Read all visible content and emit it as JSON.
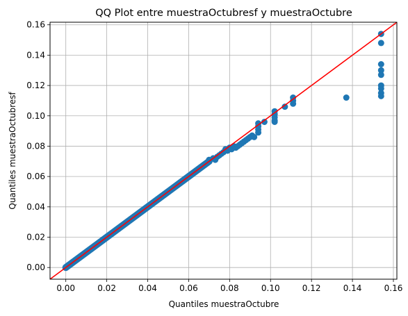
{
  "chart_data": {
    "type": "scatter",
    "title": "QQ Plot entre muestraOctubresf y muestraOctubre",
    "xlabel": "Quantiles muestraOctubre",
    "ylabel": "Quantiles muestraOctubresf",
    "xlim": [
      -0.0077,
      0.1617
    ],
    "ylim": [
      -0.0077,
      0.1617
    ],
    "xticks": [
      0.0,
      0.02,
      0.04,
      0.06,
      0.08,
      0.1,
      0.12,
      0.14,
      0.16
    ],
    "yticks": [
      0.0,
      0.02,
      0.04,
      0.06,
      0.08,
      0.1,
      0.12,
      0.14,
      0.16
    ],
    "xtick_labels": [
      "0.00",
      "0.02",
      "0.04",
      "0.06",
      "0.08",
      "0.10",
      "0.12",
      "0.14",
      "0.16"
    ],
    "ytick_labels": [
      "0.00",
      "0.02",
      "0.04",
      "0.06",
      "0.08",
      "0.10",
      "0.12",
      "0.14",
      "0.16"
    ],
    "grid": true,
    "points_color": "#1f77b4",
    "reference_line": {
      "slope": 1,
      "intercept": 0,
      "color": "#ff0000"
    },
    "dense_line_range": [
      0.0,
      0.07
    ],
    "points": [
      [
        0.07,
        0.071
      ],
      [
        0.072,
        0.072
      ],
      [
        0.073,
        0.071
      ],
      [
        0.074,
        0.073
      ],
      [
        0.075,
        0.074
      ],
      [
        0.076,
        0.075
      ],
      [
        0.077,
        0.076
      ],
      [
        0.078,
        0.078
      ],
      [
        0.079,
        0.077
      ],
      [
        0.08,
        0.079
      ],
      [
        0.081,
        0.078
      ],
      [
        0.082,
        0.08
      ],
      [
        0.083,
        0.079
      ],
      [
        0.084,
        0.08
      ],
      [
        0.085,
        0.081
      ],
      [
        0.086,
        0.082
      ],
      [
        0.087,
        0.083
      ],
      [
        0.088,
        0.084
      ],
      [
        0.089,
        0.085
      ],
      [
        0.09,
        0.086
      ],
      [
        0.091,
        0.087
      ],
      [
        0.092,
        0.086
      ],
      [
        0.094,
        0.095
      ],
      [
        0.094,
        0.093
      ],
      [
        0.094,
        0.091
      ],
      [
        0.094,
        0.089
      ],
      [
        0.097,
        0.096
      ],
      [
        0.102,
        0.103
      ],
      [
        0.102,
        0.101
      ],
      [
        0.102,
        0.099
      ],
      [
        0.102,
        0.097
      ],
      [
        0.102,
        0.096
      ],
      [
        0.107,
        0.106
      ],
      [
        0.111,
        0.112
      ],
      [
        0.111,
        0.11
      ],
      [
        0.111,
        0.108
      ],
      [
        0.137,
        0.112
      ],
      [
        0.154,
        0.154
      ],
      [
        0.154,
        0.148
      ],
      [
        0.154,
        0.134
      ],
      [
        0.154,
        0.13
      ],
      [
        0.154,
        0.127
      ],
      [
        0.154,
        0.12
      ],
      [
        0.154,
        0.118
      ],
      [
        0.154,
        0.115
      ],
      [
        0.154,
        0.113
      ]
    ]
  }
}
